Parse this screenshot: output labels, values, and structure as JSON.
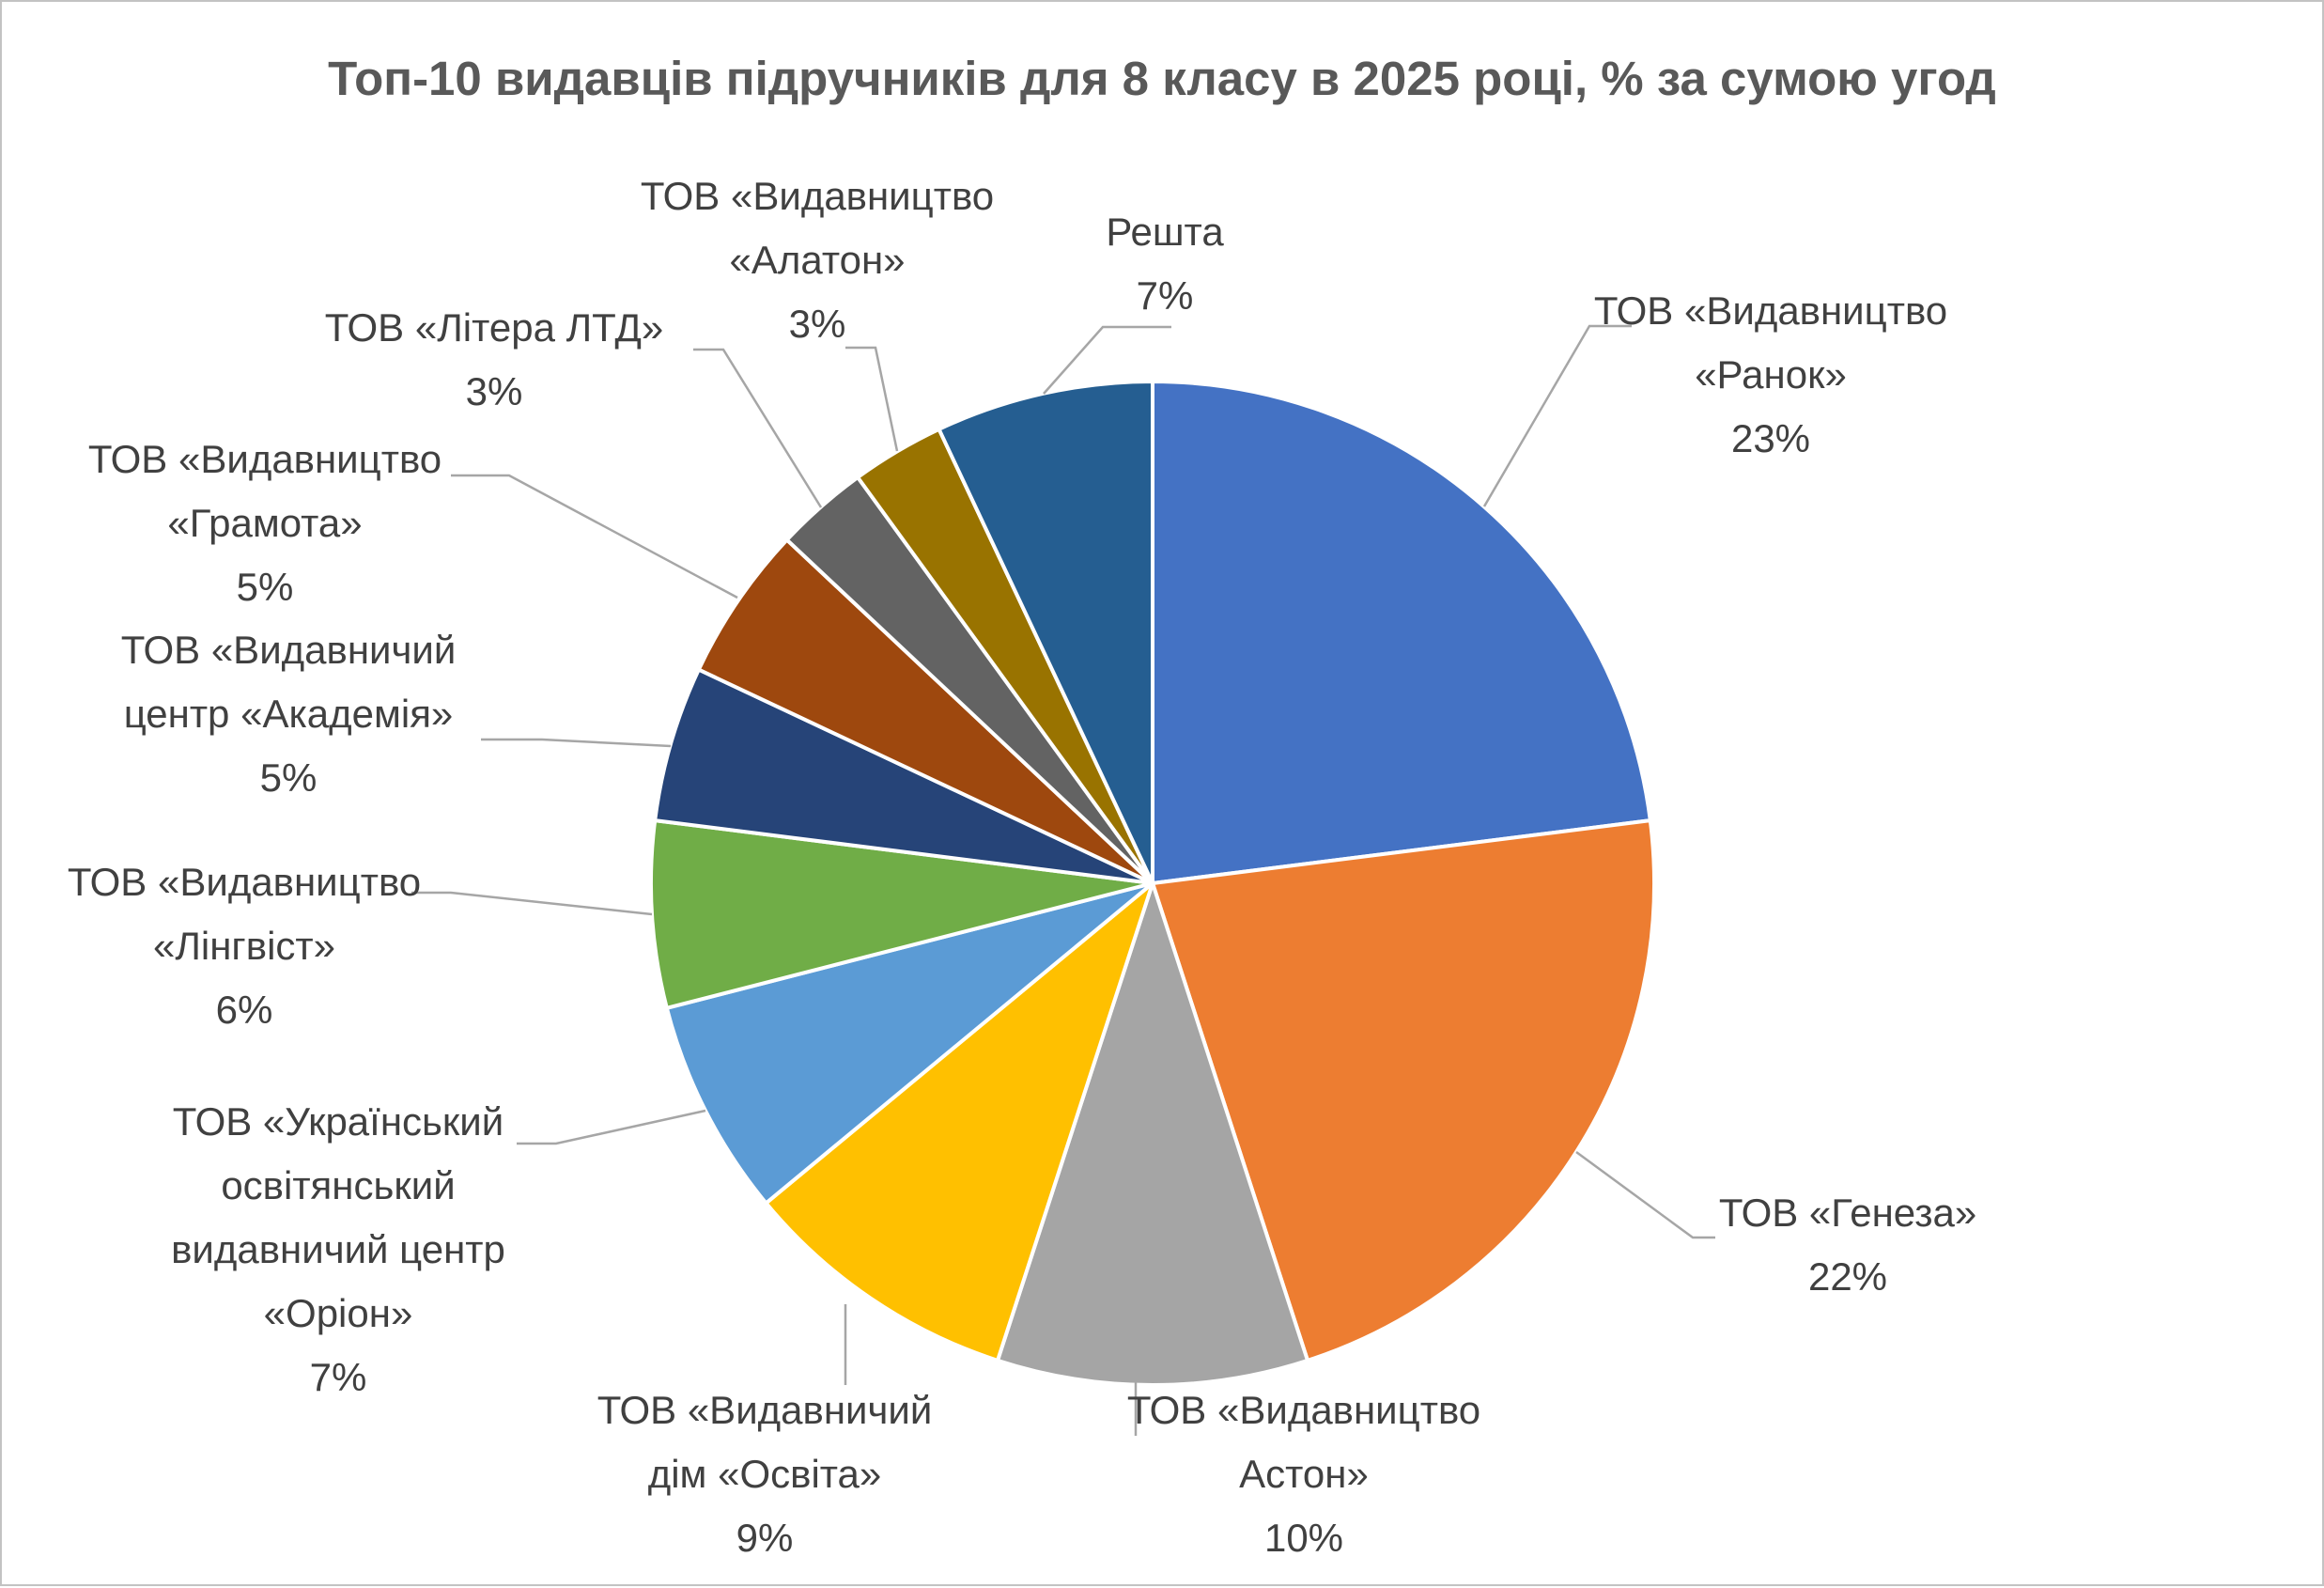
{
  "title": "Топ-10 видавців підручників для 8 класу в 2025 році, % за сумою угод",
  "chart_data": {
    "type": "pie",
    "title": "Топ-10 видавців підручників для 8 класу в 2025 році, % за сумою угод",
    "unit": "%",
    "total": 100,
    "start_angle_deg": 0,
    "direction": "clockwise",
    "legend": "none",
    "label_style": "outside-with-leader-lines",
    "label_text_color": "#404040",
    "title_color": "#595959",
    "leader_line_color": "#A6A6A6",
    "slices": [
      {
        "id": "ranok",
        "label": "ТОВ «Видавництво «Ранок»",
        "label_lines": [
          "ТОВ «Видавництво",
          "«Ранок»"
        ],
        "value": 23,
        "pct_label": "23%",
        "color": "#4472C4"
      },
      {
        "id": "geneza",
        "label": "ТОВ «Генеза»",
        "label_lines": [
          "ТОВ «Генеза»"
        ],
        "value": 22,
        "pct_label": "22%",
        "color": "#ED7D31"
      },
      {
        "id": "aston",
        "label": "ТОВ «Видавництво Астон»",
        "label_lines": [
          "ТОВ «Видавництво",
          "Астон»"
        ],
        "value": 10,
        "pct_label": "10%",
        "color": "#A5A5A5"
      },
      {
        "id": "osvita",
        "label": "ТОВ «Видавничий дім «Освіта»",
        "label_lines": [
          "ТОВ «Видавничий",
          "дім «Освіта»"
        ],
        "value": 9,
        "pct_label": "9%",
        "color": "#FFC000"
      },
      {
        "id": "orion",
        "label": "ТОВ «Український освітянський видавничий центр «Оріон»",
        "label_lines": [
          "ТОВ «Український",
          "освітянський",
          "видавничий центр",
          "«Оріон»"
        ],
        "value": 7,
        "pct_label": "7%",
        "color": "#5B9BD5"
      },
      {
        "id": "lingvist",
        "label": "ТОВ «Видавництво «Лінгвіст»",
        "label_lines": [
          "ТОВ «Видавництво",
          "«Лінгвіст»"
        ],
        "value": 6,
        "pct_label": "6%",
        "color": "#70AD47"
      },
      {
        "id": "akademia",
        "label": "ТОВ «Видавничий центр «Академія»",
        "label_lines": [
          "ТОВ «Видавничий",
          "центр «Академія»"
        ],
        "value": 5,
        "pct_label": "5%",
        "color": "#264478"
      },
      {
        "id": "hramota",
        "label": "ТОВ «Видавництво «Грамота»",
        "label_lines": [
          "ТОВ «Видавництво",
          "«Грамота»"
        ],
        "value": 5,
        "pct_label": "5%",
        "color": "#9E480E"
      },
      {
        "id": "litera",
        "label": "ТОВ «Літера ЛТД»",
        "label_lines": [
          "ТОВ «Літера ЛТД»"
        ],
        "value": 3,
        "pct_label": "3%",
        "color": "#636363"
      },
      {
        "id": "alaton",
        "label": "ТОВ «Видавництво «Алатон»",
        "label_lines": [
          "ТОВ «Видавництво",
          "«Алатон»"
        ],
        "value": 3,
        "pct_label": "3%",
        "color": "#997300"
      },
      {
        "id": "reshta",
        "label": "Решта",
        "label_lines": [
          "Решта"
        ],
        "value": 7,
        "pct_label": "7%",
        "color": "#255E91"
      }
    ]
  }
}
